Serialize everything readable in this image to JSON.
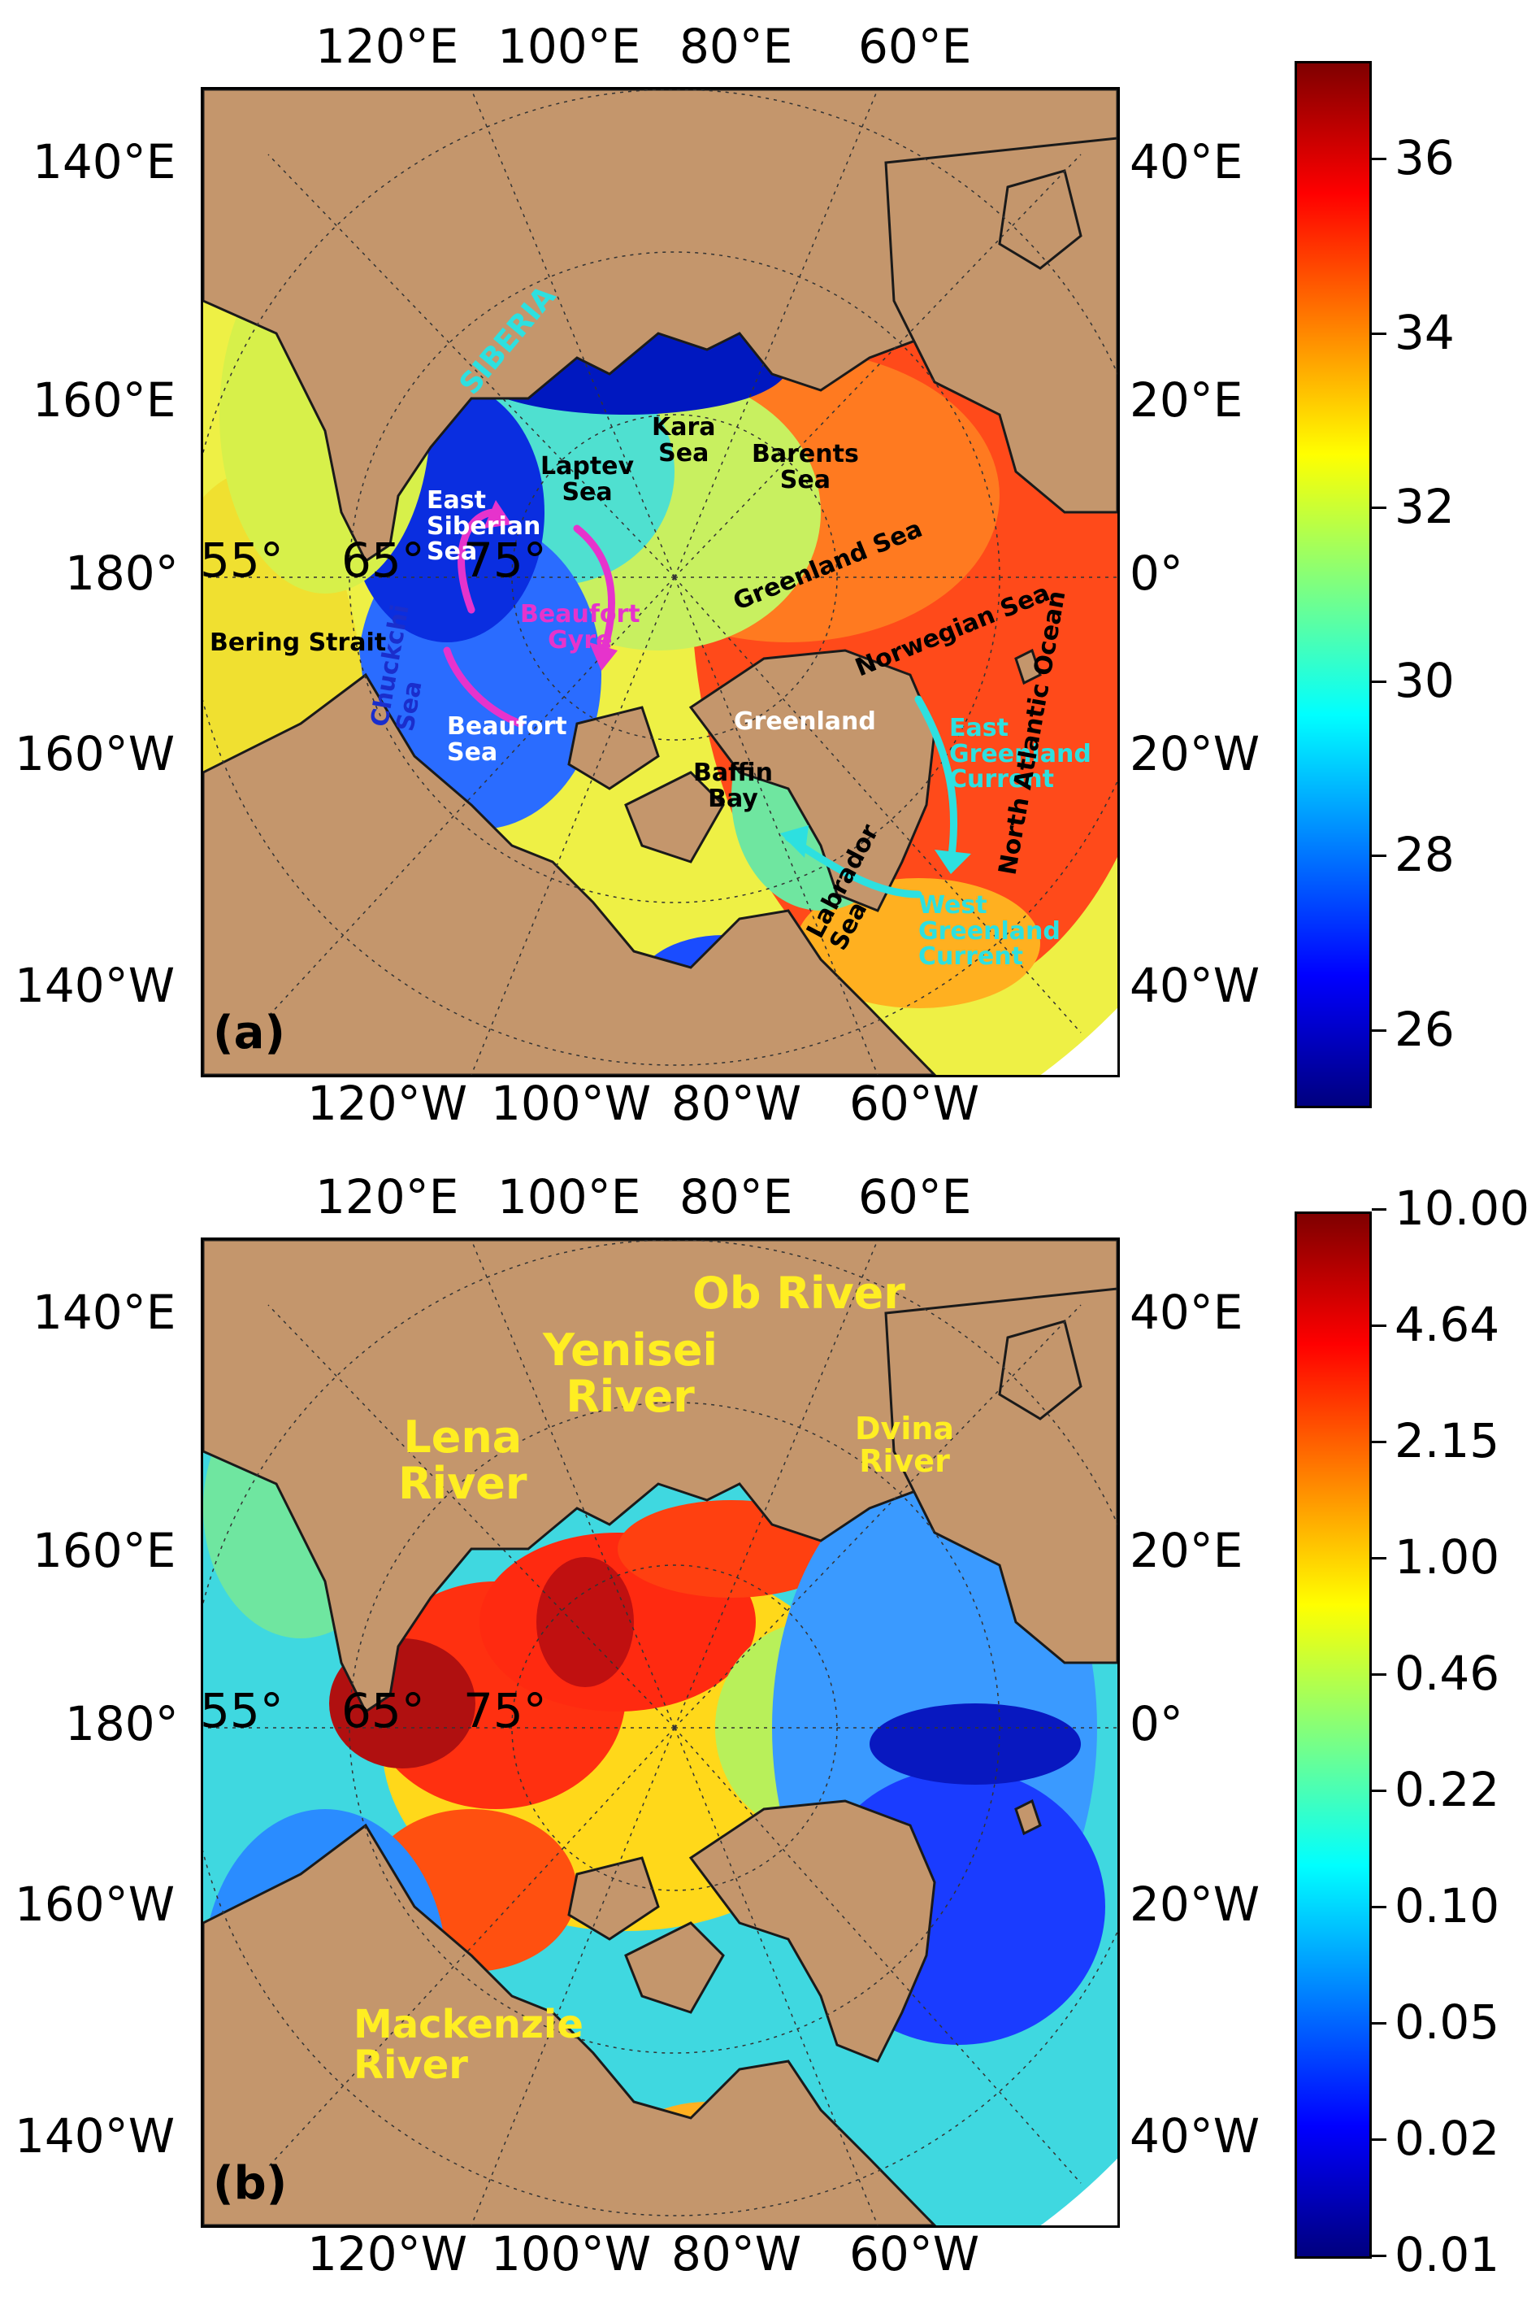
{
  "panel_a": {
    "letter": "(a)",
    "top_ticks": [
      "120°E",
      "100°E",
      "80°E",
      "60°E"
    ],
    "bottom_ticks": [
      "120°W",
      "100°W",
      "80°W",
      "60°W"
    ],
    "left_ticks": [
      "140°E",
      "160°E",
      "180°",
      "160°W",
      "140°W"
    ],
    "right_ticks": [
      "40°E",
      "20°E",
      "0°",
      "20°W",
      "40°W"
    ],
    "lat_labels": [
      "55°",
      "65°",
      "75°"
    ],
    "colorbar_ticks": [
      "36",
      "34",
      "32",
      "30",
      "28",
      "26"
    ],
    "colorbar_range": [
      25,
      37
    ],
    "labels": {
      "siberia": "SIBERIA",
      "kara_sea": "Kara\nSea",
      "barents_sea": "Barents\nSea",
      "laptev_sea": "Laptev\nSea",
      "east_siberian_sea": "East\nSiberian\nSea",
      "greenland_sea": "Greenland Sea",
      "norwegian_sea": "Norwegian Sea",
      "beaufort_gyre": "Beaufort\nGyre",
      "chukchi_sea": "Chuckchi\nSea",
      "bering_strait": "Bering Strait",
      "beaufort_sea": "Beaufort\nSea",
      "greenland": "Greenland",
      "east_greenland_current": "East\nGreenland\nCurrent",
      "baffin_bay": "Baffin\nBay",
      "labrador_sea": "Labrador\nSea",
      "west_greenland_current": "West\nGreenland\nCurrent",
      "north_atlantic_ocean": "North Atlantic Ocean"
    }
  },
  "panel_b": {
    "letter": "(b)",
    "top_ticks": [
      "120°E",
      "100°E",
      "80°E",
      "60°E"
    ],
    "bottom_ticks": [
      "120°W",
      "100°W",
      "80°W",
      "60°W"
    ],
    "left_ticks": [
      "140°E",
      "160°E",
      "180°",
      "160°W",
      "140°W"
    ],
    "right_ticks": [
      "40°E",
      "20°E",
      "0°",
      "20°W",
      "40°W"
    ],
    "lat_labels": [
      "55°",
      "65°",
      "75°"
    ],
    "colorbar_ticks": [
      "10.00",
      "4.64",
      "2.15",
      "1.00",
      "0.46",
      "0.22",
      "0.10",
      "0.05",
      "0.02",
      "0.01"
    ],
    "colorbar_scale": "log",
    "labels": {
      "ob_river": "Ob River",
      "yenisei_river": "Yenisei\nRiver",
      "lena_river": "Lena\nRiver",
      "dvina_river": "Dvina\nRiver",
      "mackenzie_river": "Mackenzie\nRiver"
    }
  },
  "colors": {
    "land": "#c4966c",
    "label_cyan": "#2de0e0",
    "label_magenta": "#e633cc",
    "label_yellow": "#ffee22",
    "jet": [
      "#00007f",
      "#0000ff",
      "#007fff",
      "#00ffff",
      "#7fff7f",
      "#ffff00",
      "#ff7f00",
      "#ff0000",
      "#7f0000"
    ]
  }
}
